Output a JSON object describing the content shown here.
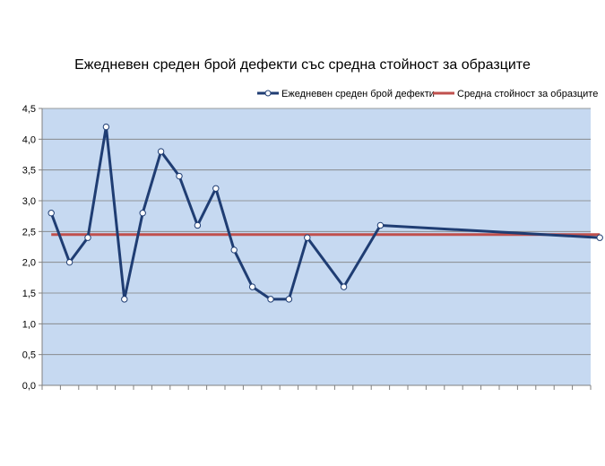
{
  "chart_data": {
    "type": "line",
    "title": "Ежедневен среден брой дефекти със средна стойност за образците",
    "xlabel": "",
    "ylabel": "",
    "ylim": [
      0,
      4.5
    ],
    "y_ticks": [
      "0,0",
      "0,5",
      "1,0",
      "1,5",
      "2,0",
      "2,5",
      "3,0",
      "3,5",
      "4,0",
      "4,5"
    ],
    "x_positions": 30,
    "grid": true,
    "legend_position": "top-right",
    "series": [
      {
        "name": "Ежедневен среден брой дефекти",
        "color": "#1f3d73",
        "points": [
          {
            "x": 0,
            "y": 2.8
          },
          {
            "x": 1,
            "y": 2.0
          },
          {
            "x": 2,
            "y": 2.4
          },
          {
            "x": 3,
            "y": 4.2
          },
          {
            "x": 4,
            "y": 1.4
          },
          {
            "x": 5,
            "y": 2.8
          },
          {
            "x": 6,
            "y": 3.8
          },
          {
            "x": 7,
            "y": 3.4
          },
          {
            "x": 8,
            "y": 2.6
          },
          {
            "x": 9,
            "y": 3.2
          },
          {
            "x": 10,
            "y": 2.2
          },
          {
            "x": 11,
            "y": 1.6
          },
          {
            "x": 12,
            "y": 1.4
          },
          {
            "x": 13,
            "y": 1.4
          },
          {
            "x": 14,
            "y": 2.4
          },
          {
            "x": 16,
            "y": 1.6
          },
          {
            "x": 18,
            "y": 2.6
          },
          {
            "x": 30,
            "y": 2.4
          }
        ]
      },
      {
        "name": "Средна стойност за образците",
        "color": "#c0504d",
        "points": [
          {
            "x": 0,
            "y": 2.45
          },
          {
            "x": 30,
            "y": 2.45
          }
        ]
      }
    ],
    "plot_background": "#c6d9f1",
    "grid_color": "#7f7f7f"
  }
}
